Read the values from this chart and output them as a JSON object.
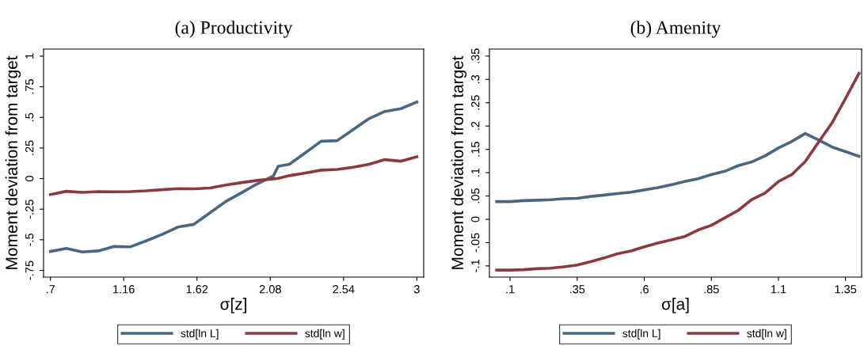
{
  "chart_data": [
    {
      "type": "line",
      "title": "(a) Productivity",
      "xlabel": "σ[z]",
      "ylabel": "Moment deviation from target",
      "x": [
        0.7,
        0.8,
        0.9,
        1.0,
        1.1,
        1.2,
        1.3,
        1.4,
        1.5,
        1.6,
        1.7,
        1.8,
        1.9,
        2.0,
        2.1,
        2.13,
        2.2,
        2.3,
        2.4,
        2.5,
        2.6,
        2.7,
        2.8,
        2.9,
        3.0
      ],
      "series": [
        {
          "name": "std[ln L]",
          "color": "#4a6781",
          "values": [
            -0.595,
            -0.571,
            -0.6,
            -0.591,
            -0.555,
            -0.558,
            -0.509,
            -0.456,
            -0.396,
            -0.374,
            -0.281,
            -0.188,
            -0.115,
            -0.042,
            0.022,
            0.1,
            0.117,
            0.21,
            0.305,
            0.31,
            0.4,
            0.49,
            0.549,
            0.571,
            0.626
          ]
        },
        {
          "name": "std[ln w]",
          "color": "#8b3a3f",
          "values": [
            -0.13,
            -0.104,
            -0.113,
            -0.106,
            -0.108,
            -0.106,
            -0.1,
            -0.091,
            -0.082,
            -0.084,
            -0.077,
            -0.053,
            -0.033,
            -0.015,
            -0.002,
            0.002,
            0.024,
            0.046,
            0.069,
            0.075,
            0.093,
            0.117,
            0.155,
            0.142,
            0.179
          ]
        }
      ],
      "xlim": [
        0.657,
        3.043
      ],
      "ylim": [
        -0.805,
        1.058
      ],
      "xticks": [
        {
          "value": 0.7,
          "label": ".7"
        },
        1.16,
        1.62,
        2.08,
        2.54,
        3
      ],
      "yticks": [
        {
          "value": -0.75,
          "label": "-.75"
        },
        {
          "value": -0.5,
          "label": "-.5"
        },
        {
          "value": -0.25,
          "label": "-.25"
        },
        0,
        {
          "value": 0.25,
          "label": ".25"
        },
        {
          "value": 0.5,
          "label": ".5"
        },
        {
          "value": 0.75,
          "label": ".75"
        },
        1
      ],
      "grid": false,
      "legend": "bottom",
      "marker": "none",
      "line_style": "solid"
    },
    {
      "type": "line",
      "title": "(b) Amenity",
      "xlabel": "σ[a]",
      "ylabel": "Moment deviation from target",
      "x": [
        0.05,
        0.1,
        0.15,
        0.2,
        0.25,
        0.3,
        0.35,
        0.4,
        0.45,
        0.5,
        0.55,
        0.6,
        0.65,
        0.7,
        0.75,
        0.8,
        0.85,
        0.9,
        0.95,
        1.0,
        1.05,
        1.1,
        1.15,
        1.2,
        1.25,
        1.3,
        1.35,
        1.4
      ],
      "series": [
        {
          "name": "std[ln L]",
          "color": "#4a6781",
          "values": [
            0.038,
            0.038,
            0.04,
            0.041,
            0.042,
            0.044,
            0.045,
            0.049,
            0.052,
            0.055,
            0.058,
            0.063,
            0.068,
            0.074,
            0.081,
            0.087,
            0.096,
            0.103,
            0.115,
            0.123,
            0.136,
            0.153,
            0.167,
            0.184,
            0.17,
            0.155,
            0.145,
            0.135
          ]
        },
        {
          "name": "std[ln w]",
          "color": "#8b3a3f",
          "values": [
            -0.109,
            -0.109,
            -0.108,
            -0.106,
            -0.105,
            -0.102,
            -0.098,
            -0.091,
            -0.083,
            -0.074,
            -0.068,
            -0.059,
            -0.051,
            -0.044,
            -0.037,
            -0.023,
            -0.013,
            0.003,
            0.019,
            0.042,
            0.056,
            0.081,
            0.096,
            0.124,
            0.166,
            0.207,
            0.259,
            0.313
          ]
        }
      ],
      "xlim": [
        0.023,
        1.41
      ],
      "ylim": [
        -0.124,
        0.365
      ],
      "xticks": [
        {
          "value": 0.1,
          "label": ".1"
        },
        {
          "value": 0.35,
          "label": ".35"
        },
        {
          "value": 0.6,
          "label": ".6"
        },
        {
          "value": 0.85,
          "label": ".85"
        },
        1.1,
        1.35
      ],
      "yticks": [
        {
          "value": -0.1,
          "label": "-.1"
        },
        {
          "value": -0.05,
          "label": "-.05"
        },
        0,
        {
          "value": 0.05,
          "label": ".05"
        },
        {
          "value": 0.1,
          "label": ".1"
        },
        {
          "value": 0.15,
          "label": ".15"
        },
        {
          "value": 0.2,
          "label": ".2"
        },
        {
          "value": 0.25,
          "label": ".25"
        },
        {
          "value": 0.3,
          "label": ".3"
        },
        {
          "value": 0.35,
          "label": ".35"
        }
      ],
      "grid": false,
      "legend": "bottom",
      "marker": "none",
      "line_style": "solid"
    }
  ]
}
